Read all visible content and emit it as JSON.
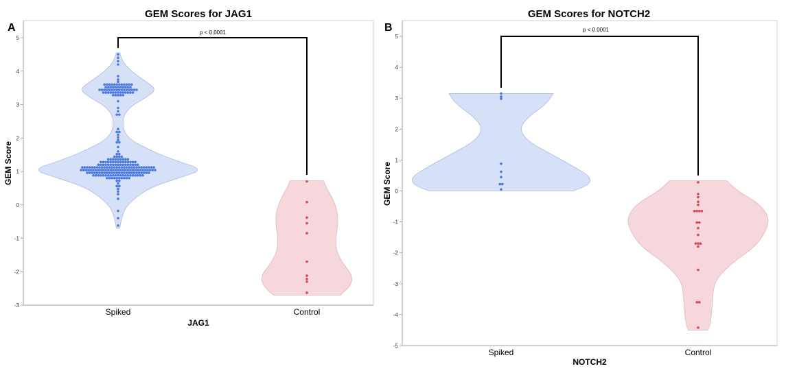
{
  "chart_data": [
    {
      "type": "violin",
      "panel_label": "A",
      "title": "GEM Scores for JAG1",
      "xlabel": "JAG1",
      "ylabel": "GEM Score",
      "ylim": [
        -3,
        5.5
      ],
      "yticks": [
        -3,
        -2,
        -1,
        0,
        1,
        2,
        3,
        4,
        5
      ],
      "categories": [
        "Spiked",
        "Control"
      ],
      "significance": {
        "text": "p < 0.0001",
        "between": [
          "Spiked",
          "Control"
        ],
        "y": 5.0
      },
      "series": [
        {
          "name": "Spiked",
          "color": "#4a78e0",
          "fill": "#d6e0f7",
          "range": [
            -0.7,
            4.55
          ],
          "density": [
            [
              -0.7,
              0.02
            ],
            [
              -0.4,
              0.04
            ],
            [
              0,
              0.1
            ],
            [
              0.5,
              0.35
            ],
            [
              0.8,
              0.7
            ],
            [
              1.05,
              1.0
            ],
            [
              1.3,
              0.7
            ],
            [
              1.6,
              0.4
            ],
            [
              2.0,
              0.1
            ],
            [
              2.5,
              0.04
            ],
            [
              2.9,
              0.12
            ],
            [
              3.2,
              0.32
            ],
            [
              3.45,
              0.45
            ],
            [
              3.7,
              0.32
            ],
            [
              4.0,
              0.15
            ],
            [
              4.3,
              0.05
            ],
            [
              4.55,
              0.02
            ]
          ],
          "dot_rows": [
            [
              4.5,
              1
            ],
            [
              4.4,
              1
            ],
            [
              4.3,
              1
            ],
            [
              4.2,
              1
            ],
            [
              3.85,
              1
            ],
            [
              3.75,
              1
            ],
            [
              3.68,
              1
            ],
            [
              3.6,
              12
            ],
            [
              3.52,
              11
            ],
            [
              3.44,
              16
            ],
            [
              3.36,
              13
            ],
            [
              3.28,
              5
            ],
            [
              3.1,
              1
            ],
            [
              2.9,
              1
            ],
            [
              2.8,
              1
            ],
            [
              2.7,
              2
            ],
            [
              2.27,
              1
            ],
            [
              2.18,
              2
            ],
            [
              2.1,
              1
            ],
            [
              2.02,
              1
            ],
            [
              1.94,
              1
            ],
            [
              1.87,
              2
            ],
            [
              1.73,
              1
            ],
            [
              1.6,
              1
            ],
            [
              1.52,
              2
            ],
            [
              1.44,
              4
            ],
            [
              1.36,
              9
            ],
            [
              1.28,
              15
            ],
            [
              1.2,
              17
            ],
            [
              1.12,
              30
            ],
            [
              1.04,
              31
            ],
            [
              0.96,
              26
            ],
            [
              0.88,
              21
            ],
            [
              0.8,
              10
            ],
            [
              0.72,
              2
            ],
            [
              0.64,
              1
            ],
            [
              0.56,
              2
            ],
            [
              0.48,
              1
            ],
            [
              0.4,
              1
            ],
            [
              0.32,
              1
            ],
            [
              0.18,
              1
            ],
            [
              -0.18,
              1
            ],
            [
              -0.4,
              1
            ],
            [
              -0.62,
              1
            ]
          ]
        },
        {
          "name": "Control",
          "color": "#d94654",
          "fill": "#f5d7dc",
          "range": [
            -2.7,
            0.72
          ],
          "density": [
            [
              -2.7,
              0.68
            ],
            [
              -2.4,
              0.9
            ],
            [
              -2.1,
              0.92
            ],
            [
              -1.8,
              0.75
            ],
            [
              -1.4,
              0.6
            ],
            [
              -1.0,
              0.58
            ],
            [
              -0.6,
              0.63
            ],
            [
              -0.2,
              0.62
            ],
            [
              0.2,
              0.52
            ],
            [
              0.5,
              0.4
            ],
            [
              0.72,
              0.34
            ]
          ],
          "dot_rows": [
            [
              0.7,
              1
            ],
            [
              0.08,
              1
            ],
            [
              -0.38,
              1
            ],
            [
              -0.55,
              1
            ],
            [
              -0.85,
              1
            ],
            [
              -1.7,
              1
            ],
            [
              -2.12,
              1
            ],
            [
              -2.22,
              1
            ],
            [
              -2.3,
              1
            ],
            [
              -2.63,
              1
            ]
          ]
        }
      ]
    },
    {
      "type": "violin",
      "panel_label": "B",
      "title": "GEM Scores for NOTCH2",
      "xlabel": "NOTCH2",
      "ylabel": "GEM Score",
      "ylim": [
        -5,
        5.5
      ],
      "yticks": [
        -5,
        -4,
        -3,
        -2,
        -1,
        0,
        1,
        2,
        3,
        4,
        5
      ],
      "categories": [
        "Spiked",
        "Control"
      ],
      "significance": {
        "text": "p < 0.0001",
        "between": [
          "Spiked",
          "Control"
        ],
        "y": 5.0
      },
      "series": [
        {
          "name": "Spiked",
          "color": "#4a78e0",
          "fill": "#d6e0f7",
          "range": [
            0.0,
            3.15
          ],
          "density": [
            [
              0,
              0.8
            ],
            [
              0.2,
              0.98
            ],
            [
              0.45,
              1.0
            ],
            [
              0.8,
              0.8
            ],
            [
              1.2,
              0.55
            ],
            [
              1.6,
              0.3
            ],
            [
              2.0,
              0.2
            ],
            [
              2.4,
              0.3
            ],
            [
              2.8,
              0.5
            ],
            [
              3.15,
              0.58
            ]
          ],
          "dot_rows": [
            [
              3.15,
              1
            ],
            [
              3.05,
              1
            ],
            [
              2.98,
              1
            ],
            [
              0.88,
              1
            ],
            [
              0.62,
              1
            ],
            [
              0.45,
              1
            ],
            [
              0.22,
              2
            ],
            [
              0.05,
              1
            ]
          ]
        },
        {
          "name": "Control",
          "color": "#d94654",
          "fill": "#f5d7dc",
          "range": [
            -4.5,
            0.33
          ],
          "density": [
            [
              -4.5,
              0.14
            ],
            [
              -4.2,
              0.18
            ],
            [
              -3.6,
              0.2
            ],
            [
              -3.0,
              0.22
            ],
            [
              -2.6,
              0.35
            ],
            [
              -2.2,
              0.55
            ],
            [
              -1.8,
              0.8
            ],
            [
              -1.3,
              0.95
            ],
            [
              -0.85,
              1.0
            ],
            [
              -0.4,
              0.85
            ],
            [
              0,
              0.55
            ],
            [
              0.33,
              0.4
            ]
          ],
          "dot_rows": [
            [
              0.28,
              1
            ],
            [
              -0.1,
              1
            ],
            [
              -0.2,
              1
            ],
            [
              -0.35,
              1
            ],
            [
              -0.45,
              1
            ],
            [
              -0.65,
              4
            ],
            [
              -1.02,
              2
            ],
            [
              -1.2,
              1
            ],
            [
              -1.42,
              1
            ],
            [
              -1.7,
              3
            ],
            [
              -1.8,
              1
            ],
            [
              -2.55,
              1
            ],
            [
              -3.6,
              2
            ],
            [
              -4.42,
              1
            ]
          ]
        }
      ]
    }
  ]
}
